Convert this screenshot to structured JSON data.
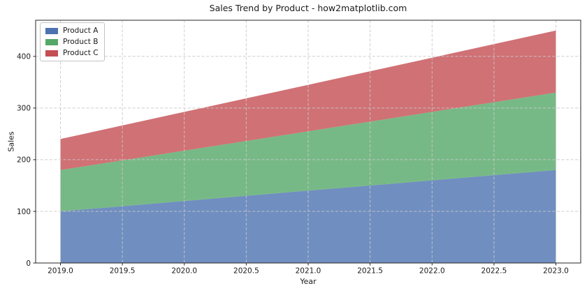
{
  "chart_data": {
    "type": "area",
    "stacked": true,
    "title": "Sales Trend by Product - how2matplotlib.com",
    "xlabel": "Year",
    "ylabel": "Sales",
    "x": [
      2019,
      2020,
      2021,
      2022,
      2023
    ],
    "series": [
      {
        "name": "Product A",
        "values": [
          100,
          120,
          140,
          160,
          180
        ],
        "color": "#4c72b0"
      },
      {
        "name": "Product B",
        "values": [
          80,
          97.5,
          115,
          132.5,
          150
        ],
        "color": "#55a868"
      },
      {
        "name": "Product C",
        "values": [
          60,
          75,
          90,
          105,
          120
        ],
        "color": "#c44e52"
      }
    ],
    "fill_alpha": 0.8,
    "xlim": [
      2018.8,
      2023.2
    ],
    "ylim": [
      0,
      470
    ],
    "x_ticks": [
      2019.0,
      2019.5,
      2020.0,
      2020.5,
      2021.0,
      2021.5,
      2022.0,
      2022.5,
      2023.0
    ],
    "x_tick_labels": [
      "2019.0",
      "2019.5",
      "2020.0",
      "2020.5",
      "2021.0",
      "2021.5",
      "2022.0",
      "2022.5",
      "2023.0"
    ],
    "y_ticks": [
      0,
      100,
      200,
      300,
      400
    ],
    "y_tick_labels": [
      "0",
      "100",
      "200",
      "300",
      "400"
    ],
    "grid": {
      "visible": true,
      "style": "dashed",
      "above_data": true,
      "color": "#c9c9c9"
    },
    "legend": {
      "position": "upper left",
      "items": [
        "Product A",
        "Product B",
        "Product C"
      ]
    }
  },
  "colors": {
    "background": "#ffffff",
    "spine": "#262626",
    "tick_text": "#1a1a1a"
  }
}
